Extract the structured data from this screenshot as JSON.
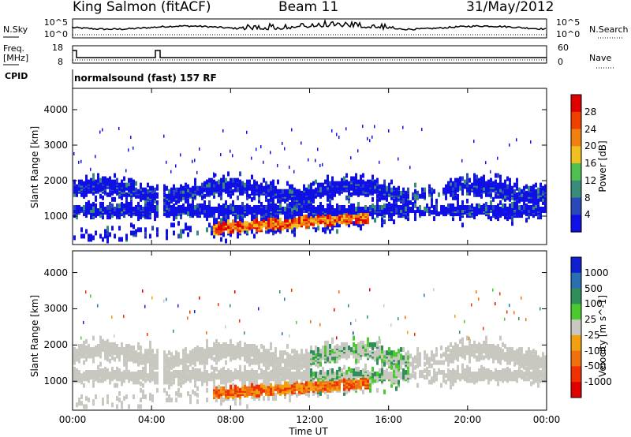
{
  "header": {
    "station": "King Salmon (fitACF)",
    "beam": "Beam 11",
    "date": "31/May/2012"
  },
  "strips": {
    "nsky_label": "N.Sky",
    "nsky_ticks": [
      "10^5",
      "10^0"
    ],
    "nsearch_label": "N.Search",
    "nsearch_ticks": [
      "10^5",
      "10^0"
    ],
    "freq_label": "Freq.",
    "freq_unit": "[MHz]",
    "freq_ticks": [
      "18",
      "8"
    ],
    "nave_label": "Nave",
    "nave_ticks": [
      "60",
      "0"
    ],
    "cpid_label": "CPID",
    "cpid_value": "normalsound (fast) 157 RF"
  },
  "chart_data": [
    {
      "type": "heatmap",
      "name": "power",
      "ylabel": "Slant Range [km]",
      "y_ticks": [
        "1000",
        "2000",
        "3000",
        "4000"
      ],
      "ylim": [
        200,
        4600
      ],
      "colorbar_label": "Power [dB]",
      "colorbar_ticks": [
        "4",
        "8",
        "12",
        "16",
        "20",
        "24",
        "28"
      ],
      "colorbar_colors": [
        "#1010e6",
        "#2b48b8",
        "#3a8c7a",
        "#4fbf4f",
        "#f0c020",
        "#f08010",
        "#f04000",
        "#e00000"
      ]
    },
    {
      "type": "heatmap",
      "name": "velocity",
      "ylabel": "Slant Range [km]",
      "y_ticks": [
        "1000",
        "2000",
        "3000",
        "4000"
      ],
      "ylim": [
        200,
        4600
      ],
      "colorbar_label": "Velocity [m s^-1]",
      "colorbar_ticks": [
        "1000",
        "500",
        "100",
        "25",
        "-25",
        "-100",
        "-500",
        "-1000"
      ],
      "colorbar_colors": [
        "#1020d0",
        "#2a6fb0",
        "#2f8f5a",
        "#4cc830",
        "#c8c8c0",
        "#f0a010",
        "#f07010",
        "#f03000",
        "#e00000"
      ],
      "x_ticks": [
        "00:00",
        "04:00",
        "08:00",
        "12:00",
        "16:00",
        "20:00",
        "00:00"
      ],
      "xlabel": "Time UT"
    }
  ]
}
